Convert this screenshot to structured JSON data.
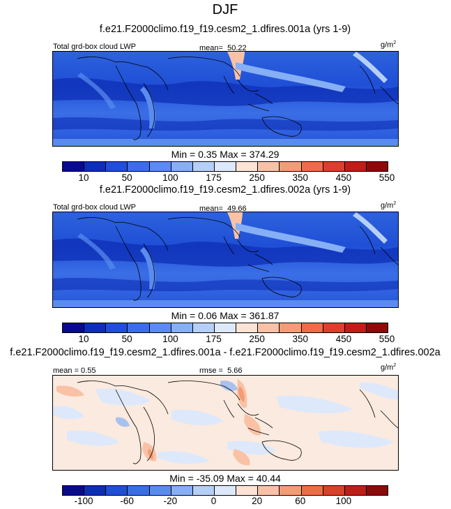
{
  "figure": {
    "season": "DJF",
    "units_base": "g/m",
    "units_exp": "2",
    "field_label": "Total grd-box cloud LWP"
  },
  "panels": [
    {
      "title": "f.e21.F2000climo.f19_f19.cesm2_1.dfires.001a (yrs 1-9)",
      "left_label": "Total grd-box cloud LWP",
      "stat_label": "mean=",
      "stat_value": "50.22",
      "min_max": "Min =   0.35 Max = 374.29"
    },
    {
      "title": "f.e21.F2000climo.f19_f19.cesm2_1.dfires.002a (yrs 1-9)",
      "left_label": "Total grd-box cloud LWP",
      "stat_label": "mean=",
      "stat_value": "49.66",
      "min_max": "Min =   0.06 Max = 361.87"
    },
    {
      "title": "f.e21.F2000climo.f19_f19.cesm2_1.dfires.001a - f.e21.F2000climo.f19_f19.cesm2_1.dfires.002a",
      "left_label": "mean =   0.55",
      "stat_label": "rmse =",
      "stat_value": "5.66",
      "min_max": "Min = -35.09 Max =  40.44"
    }
  ],
  "colorbars": {
    "absolute": {
      "colors": [
        "#0a0a8c",
        "#0d2fb5",
        "#1f4fd6",
        "#3a6ee6",
        "#5a8cf0",
        "#86aff5",
        "#b6cff8",
        "#dde9fb",
        "#fde3d6",
        "#f9c2a6",
        "#f49c75",
        "#ec6e47",
        "#d9412a",
        "#bd1f16",
        "#8c0a0a"
      ],
      "tick_labels": [
        "10",
        "50",
        "100",
        "175",
        "250",
        "350",
        "450",
        "550"
      ]
    },
    "difference": {
      "colors": [
        "#0a0a8c",
        "#0d2fb5",
        "#1f4fd6",
        "#3a6ee6",
        "#5a8cf0",
        "#86aff5",
        "#b6cff8",
        "#dde9fb",
        "#fde3d6",
        "#f9c2a6",
        "#f49c75",
        "#ec6e47",
        "#d9412a",
        "#bd1f16",
        "#8c0a0a"
      ],
      "tick_labels": [
        "-100",
        "-60",
        "-20",
        "0",
        "20",
        "60",
        "100"
      ]
    }
  }
}
